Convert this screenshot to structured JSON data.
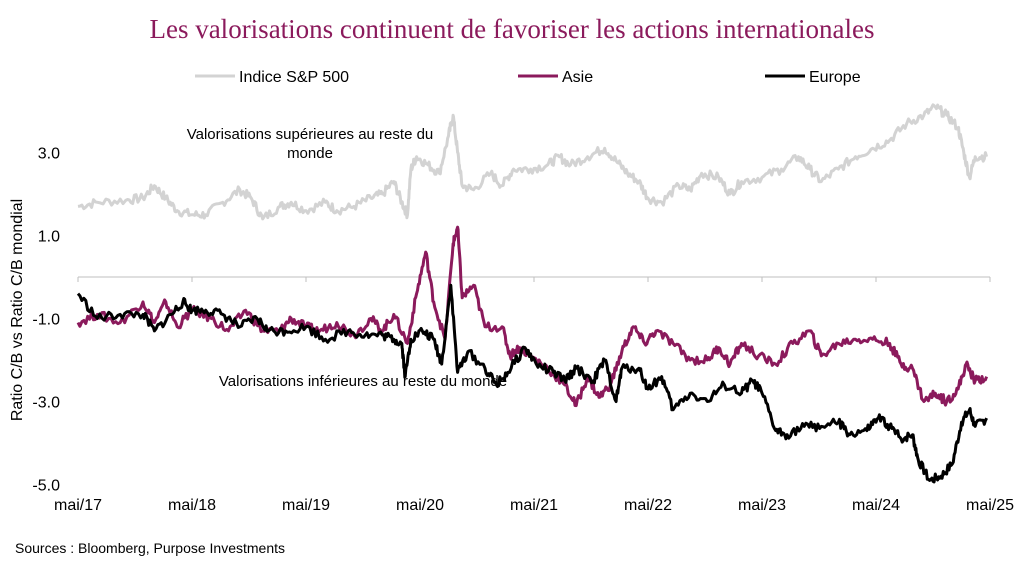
{
  "chart_data": {
    "type": "line",
    "title": "Les valorisations continuent de favoriser les actions internationales",
    "ylabel": "Ratio C/B vs Ratio C/B mondial",
    "xlabel": "",
    "ylim": [
      -5.0,
      4.0
    ],
    "yticks": [
      "3.0",
      "1.0",
      "-1.0",
      "-3.0",
      "-5.0"
    ],
    "ytick_values": [
      3.0,
      1.0,
      -1.0,
      -3.0,
      -5.0
    ],
    "x_start": 2017.33,
    "x_end": 2025.33,
    "xticks": [
      "mai/17",
      "mai/18",
      "mai/19",
      "mai/20",
      "mai/21",
      "mai/22",
      "mai/23",
      "mai/24",
      "mai/25"
    ],
    "annotations": [
      "Valorisations supérieures au reste du",
      "monde",
      "Valorisations inférieures au reste du monde"
    ],
    "series": [
      {
        "name": "Indice S&P 500",
        "color": "#d3d3d3",
        "points": [
          [
            2017.33,
            1.7
          ],
          [
            2017.5,
            1.8
          ],
          [
            2017.75,
            1.85
          ],
          [
            2017.9,
            1.9
          ],
          [
            2018.0,
            2.2
          ],
          [
            2018.1,
            1.9
          ],
          [
            2018.2,
            1.6
          ],
          [
            2018.33,
            1.5
          ],
          [
            2018.45,
            1.5
          ],
          [
            2018.6,
            1.8
          ],
          [
            2018.75,
            2.1
          ],
          [
            2018.85,
            1.9
          ],
          [
            2018.95,
            1.4
          ],
          [
            2019.1,
            1.7
          ],
          [
            2019.2,
            1.8
          ],
          [
            2019.33,
            1.6
          ],
          [
            2019.5,
            1.8
          ],
          [
            2019.6,
            1.6
          ],
          [
            2019.75,
            1.7
          ],
          [
            2019.9,
            1.9
          ],
          [
            2020.0,
            2.0
          ],
          [
            2020.1,
            2.3
          ],
          [
            2020.17,
            1.8
          ],
          [
            2020.22,
            1.5
          ],
          [
            2020.25,
            2.6
          ],
          [
            2020.3,
            2.9
          ],
          [
            2020.4,
            2.7
          ],
          [
            2020.5,
            2.5
          ],
          [
            2020.58,
            3.4
          ],
          [
            2020.62,
            3.9
          ],
          [
            2020.66,
            3.0
          ],
          [
            2020.7,
            2.2
          ],
          [
            2020.8,
            2.1
          ],
          [
            2020.95,
            2.5
          ],
          [
            2021.05,
            2.2
          ],
          [
            2021.15,
            2.6
          ],
          [
            2021.3,
            2.6
          ],
          [
            2021.45,
            2.7
          ],
          [
            2021.55,
            2.9
          ],
          [
            2021.65,
            2.7
          ],
          [
            2021.8,
            2.9
          ],
          [
            2021.95,
            3.1
          ],
          [
            2022.05,
            2.8
          ],
          [
            2022.15,
            2.5
          ],
          [
            2022.25,
            2.3
          ],
          [
            2022.33,
            1.9
          ],
          [
            2022.45,
            1.8
          ],
          [
            2022.6,
            2.2
          ],
          [
            2022.7,
            2.1
          ],
          [
            2022.8,
            2.5
          ],
          [
            2022.95,
            2.4
          ],
          [
            2023.05,
            2.0
          ],
          [
            2023.15,
            2.3
          ],
          [
            2023.33,
            2.4
          ],
          [
            2023.5,
            2.6
          ],
          [
            2023.65,
            2.9
          ],
          [
            2023.75,
            2.6
          ],
          [
            2023.85,
            2.3
          ],
          [
            2024.0,
            2.6
          ],
          [
            2024.15,
            2.9
          ],
          [
            2024.3,
            3.1
          ],
          [
            2024.45,
            3.3
          ],
          [
            2024.6,
            3.7
          ],
          [
            2024.75,
            3.9
          ],
          [
            2024.85,
            4.1
          ],
          [
            2024.95,
            3.9
          ],
          [
            2025.05,
            3.6
          ],
          [
            2025.1,
            3.0
          ],
          [
            2025.15,
            2.4
          ],
          [
            2025.2,
            2.9
          ],
          [
            2025.3,
            2.9
          ]
        ]
      },
      {
        "name": "Asie",
        "color": "#8b1a5c",
        "points": [
          [
            2017.33,
            -1.1
          ],
          [
            2017.5,
            -0.9
          ],
          [
            2017.7,
            -1.1
          ],
          [
            2017.9,
            -0.6
          ],
          [
            2018.0,
            -1.1
          ],
          [
            2018.1,
            -0.6
          ],
          [
            2018.2,
            -1.2
          ],
          [
            2018.33,
            -0.8
          ],
          [
            2018.5,
            -1.0
          ],
          [
            2018.65,
            -1.3
          ],
          [
            2018.8,
            -0.8
          ],
          [
            2018.95,
            -1.3
          ],
          [
            2019.1,
            -1.3
          ],
          [
            2019.2,
            -1.0
          ],
          [
            2019.33,
            -1.2
          ],
          [
            2019.45,
            -1.3
          ],
          [
            2019.6,
            -1.1
          ],
          [
            2019.75,
            -1.4
          ],
          [
            2019.9,
            -1.0
          ],
          [
            2020.0,
            -1.3
          ],
          [
            2020.1,
            -0.9
          ],
          [
            2020.22,
            -1.6
          ],
          [
            2020.3,
            -0.4
          ],
          [
            2020.38,
            0.6
          ],
          [
            2020.45,
            -0.6
          ],
          [
            2020.55,
            -1.5
          ],
          [
            2020.62,
            0.8
          ],
          [
            2020.66,
            1.2
          ],
          [
            2020.7,
            -0.5
          ],
          [
            2020.8,
            -0.2
          ],
          [
            2020.9,
            -1.2
          ],
          [
            2021.05,
            -1.2
          ],
          [
            2021.12,
            -1.9
          ],
          [
            2021.2,
            -1.7
          ],
          [
            2021.3,
            -1.9
          ],
          [
            2021.45,
            -2.2
          ],
          [
            2021.6,
            -2.6
          ],
          [
            2021.7,
            -3.1
          ],
          [
            2021.8,
            -2.4
          ],
          [
            2021.9,
            -2.9
          ],
          [
            2022.0,
            -2.6
          ],
          [
            2022.1,
            -1.8
          ],
          [
            2022.2,
            -1.2
          ],
          [
            2022.3,
            -1.6
          ],
          [
            2022.4,
            -1.3
          ],
          [
            2022.55,
            -1.6
          ],
          [
            2022.7,
            -2.0
          ],
          [
            2022.85,
            -2.0
          ],
          [
            2022.95,
            -1.7
          ],
          [
            2023.05,
            -2.1
          ],
          [
            2023.15,
            -1.6
          ],
          [
            2023.3,
            -1.9
          ],
          [
            2023.45,
            -2.1
          ],
          [
            2023.6,
            -1.6
          ],
          [
            2023.75,
            -1.3
          ],
          [
            2023.85,
            -1.9
          ],
          [
            2024.0,
            -1.6
          ],
          [
            2024.15,
            -1.5
          ],
          [
            2024.3,
            -1.5
          ],
          [
            2024.45,
            -1.6
          ],
          [
            2024.55,
            -2.1
          ],
          [
            2024.65,
            -2.2
          ],
          [
            2024.75,
            -3.0
          ],
          [
            2024.85,
            -2.8
          ],
          [
            2024.95,
            -3.0
          ],
          [
            2025.05,
            -2.7
          ],
          [
            2025.12,
            -2.1
          ],
          [
            2025.2,
            -2.5
          ],
          [
            2025.3,
            -2.4
          ]
        ]
      },
      {
        "name": "Europe",
        "color": "#000000",
        "points": [
          [
            2017.33,
            -0.4
          ],
          [
            2017.5,
            -1.0
          ],
          [
            2017.7,
            -0.9
          ],
          [
            2017.9,
            -0.9
          ],
          [
            2018.0,
            -1.3
          ],
          [
            2018.15,
            -0.9
          ],
          [
            2018.25,
            -0.6
          ],
          [
            2018.33,
            -0.8
          ],
          [
            2018.45,
            -0.8
          ],
          [
            2018.6,
            -0.9
          ],
          [
            2018.75,
            -1.2
          ],
          [
            2018.9,
            -1.0
          ],
          [
            2019.0,
            -1.3
          ],
          [
            2019.15,
            -1.3
          ],
          [
            2019.33,
            -1.2
          ],
          [
            2019.5,
            -1.5
          ],
          [
            2019.7,
            -1.3
          ],
          [
            2019.85,
            -1.4
          ],
          [
            2020.0,
            -1.4
          ],
          [
            2020.1,
            -1.5
          ],
          [
            2020.17,
            -1.6
          ],
          [
            2020.2,
            -2.4
          ],
          [
            2020.25,
            -1.5
          ],
          [
            2020.35,
            -1.3
          ],
          [
            2020.45,
            -1.5
          ],
          [
            2020.52,
            -2.1
          ],
          [
            2020.6,
            -0.2
          ],
          [
            2020.66,
            -2.3
          ],
          [
            2020.75,
            -1.8
          ],
          [
            2020.9,
            -2.2
          ],
          [
            2021.0,
            -2.6
          ],
          [
            2021.1,
            -2.3
          ],
          [
            2021.25,
            -1.7
          ],
          [
            2021.35,
            -2.1
          ],
          [
            2021.5,
            -2.3
          ],
          [
            2021.6,
            -2.5
          ],
          [
            2021.7,
            -2.2
          ],
          [
            2021.85,
            -2.5
          ],
          [
            2021.95,
            -2.0
          ],
          [
            2022.05,
            -3.0
          ],
          [
            2022.1,
            -2.2
          ],
          [
            2022.25,
            -2.2
          ],
          [
            2022.33,
            -2.7
          ],
          [
            2022.45,
            -2.4
          ],
          [
            2022.55,
            -3.2
          ],
          [
            2022.7,
            -2.8
          ],
          [
            2022.85,
            -3.0
          ],
          [
            2023.0,
            -2.6
          ],
          [
            2023.15,
            -2.8
          ],
          [
            2023.25,
            -2.5
          ],
          [
            2023.33,
            -2.8
          ],
          [
            2023.45,
            -3.7
          ],
          [
            2023.55,
            -3.8
          ],
          [
            2023.7,
            -3.6
          ],
          [
            2023.85,
            -3.6
          ],
          [
            2024.0,
            -3.5
          ],
          [
            2024.1,
            -3.8
          ],
          [
            2024.25,
            -3.7
          ],
          [
            2024.35,
            -3.4
          ],
          [
            2024.45,
            -3.6
          ],
          [
            2024.55,
            -3.9
          ],
          [
            2024.65,
            -3.8
          ],
          [
            2024.7,
            -4.4
          ],
          [
            2024.8,
            -4.9
          ],
          [
            2024.9,
            -4.8
          ],
          [
            2025.0,
            -4.5
          ],
          [
            2025.08,
            -3.5
          ],
          [
            2025.15,
            -3.2
          ],
          [
            2025.2,
            -3.6
          ],
          [
            2025.3,
            -3.4
          ]
        ]
      }
    ]
  },
  "source": "Sources : Bloomberg, Purpose Investments"
}
